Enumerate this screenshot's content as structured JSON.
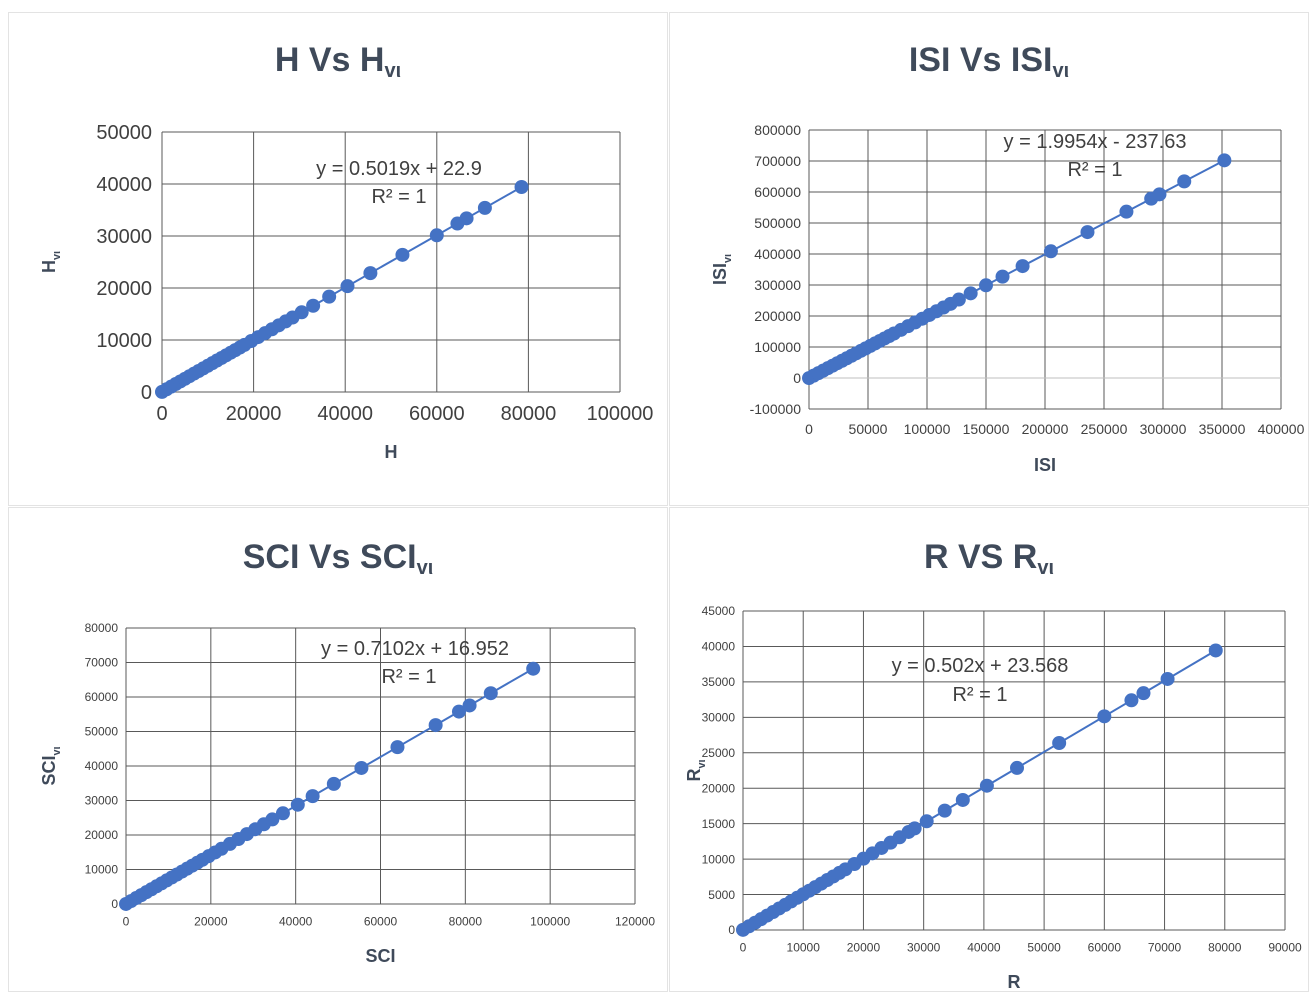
{
  "colors": {
    "series": "#4472c4",
    "grid": "#595959",
    "text": "#3f4a5a",
    "tick": "#404040"
  },
  "chart_data": [
    {
      "type": "scatter",
      "title": "H Vs H",
      "title_sub": "vι",
      "xlabel": "H",
      "ylabel": "H",
      "ylabel_sub": "vι",
      "xlim": [
        0,
        100000
      ],
      "ylim": [
        0,
        50000
      ],
      "xticks": [
        "0",
        "20000",
        "40000",
        "60000",
        "80000",
        "100000"
      ],
      "yticks": [
        "0",
        "10000",
        "20000",
        "30000",
        "40000",
        "50000"
      ],
      "trendline": {
        "equation": "y = 0.5019x + 22.9",
        "r2": "R² = 1",
        "slope": 0.5019,
        "intercept": 22.9
      },
      "grid": true,
      "series": [
        {
          "x": [
            0,
            1000,
            2000,
            3000,
            4000,
            5000,
            6000,
            7000,
            8000,
            9000,
            10000,
            11000,
            12000,
            13000,
            14000,
            15000,
            16000,
            17000,
            18000,
            19500,
            21000,
            22500,
            24000,
            25500,
            27000,
            28500,
            30500,
            33000,
            36500,
            40500,
            45500,
            52500,
            60000,
            64500,
            66500,
            70500,
            78500
          ]
        }
      ]
    },
    {
      "type": "scatter",
      "title": "ISI Vs ISI",
      "title_sub": "vι",
      "xlabel": "ISI",
      "ylabel": "ISI",
      "ylabel_sub": "vι",
      "xlim": [
        0,
        400000
      ],
      "ylim": [
        -100000,
        800000
      ],
      "xticks": [
        "0",
        "50000",
        "100000",
        "150000",
        "200000",
        "250000",
        "300000",
        "350000",
        "400000"
      ],
      "yticks": [
        "-100000",
        "0",
        "100000",
        "200000",
        "300000",
        "400000",
        "500000",
        "600000",
        "700000",
        "800000"
      ],
      "trendline": {
        "equation": "y = 1.9954x - 237.63",
        "r2": "R² = 1",
        "slope": 1.9954,
        "intercept": -237.63
      },
      "grid": true,
      "series": [
        {
          "x": [
            0,
            4000,
            8000,
            12000,
            16000,
            20000,
            24000,
            28000,
            32000,
            36000,
            40000,
            44000,
            48000,
            52000,
            56000,
            60000,
            64000,
            68000,
            72000,
            78000,
            84000,
            90000,
            96000,
            102000,
            108000,
            114000,
            120000,
            127000,
            137000,
            150000,
            164000,
            181000,
            205000,
            236000,
            269000,
            290000,
            297000,
            318000,
            352000
          ]
        }
      ]
    },
    {
      "type": "scatter",
      "title": "SCI Vs SCI",
      "title_sub": "vι",
      "xlabel": "SCI",
      "ylabel": "SCI",
      "ylabel_sub": "vι",
      "xlim": [
        0,
        120000
      ],
      "ylim": [
        0,
        80000
      ],
      "xticks": [
        "0",
        "20000",
        "40000",
        "60000",
        "80000",
        "100000",
        "120000"
      ],
      "yticks": [
        "0",
        "10000",
        "20000",
        "30000",
        "40000",
        "50000",
        "60000",
        "70000",
        "80000"
      ],
      "trendline": {
        "equation": "y = 0.7102x + 16.952",
        "r2": "R² = 1",
        "slope": 0.7102,
        "intercept": 16.952
      },
      "grid": true,
      "series": [
        {
          "x": [
            0,
            1200,
            2400,
            3600,
            4800,
            6000,
            7200,
            8400,
            9600,
            10800,
            12000,
            13200,
            14400,
            15600,
            16800,
            18000,
            19500,
            21000,
            22500,
            24500,
            26500,
            28500,
            30500,
            32500,
            34500,
            37000,
            40500,
            44000,
            49000,
            55500,
            64000,
            73000,
            78500,
            81000,
            86000,
            96000
          ]
        }
      ]
    },
    {
      "type": "scatter",
      "title": "R VS R",
      "title_sub": "vι",
      "xlabel": "R",
      "ylabel": "R",
      "ylabel_sub": "vι",
      "xlim": [
        0,
        90000
      ],
      "ylim": [
        0,
        45000
      ],
      "xticks": [
        "0",
        "10000",
        "20000",
        "30000",
        "40000",
        "50000",
        "60000",
        "70000",
        "80000",
        "90000"
      ],
      "yticks": [
        "0",
        "5000",
        "10000",
        "15000",
        "20000",
        "25000",
        "30000",
        "35000",
        "40000",
        "45000"
      ],
      "trendline": {
        "equation": "y = 0.502x + 23.568",
        "r2": "R² = 1",
        "slope": 0.502,
        "intercept": 23.568
      },
      "grid": true,
      "series": [
        {
          "x": [
            0,
            1000,
            2000,
            3000,
            4000,
            5000,
            6000,
            7000,
            8000,
            9000,
            10000,
            11000,
            12000,
            13000,
            14000,
            15000,
            16000,
            17000,
            18500,
            20000,
            21500,
            23000,
            24500,
            26000,
            27500,
            28500,
            30500,
            33500,
            36500,
            40500,
            45500,
            52500,
            60000,
            64500,
            66500,
            70500,
            78500
          ]
        }
      ]
    }
  ]
}
